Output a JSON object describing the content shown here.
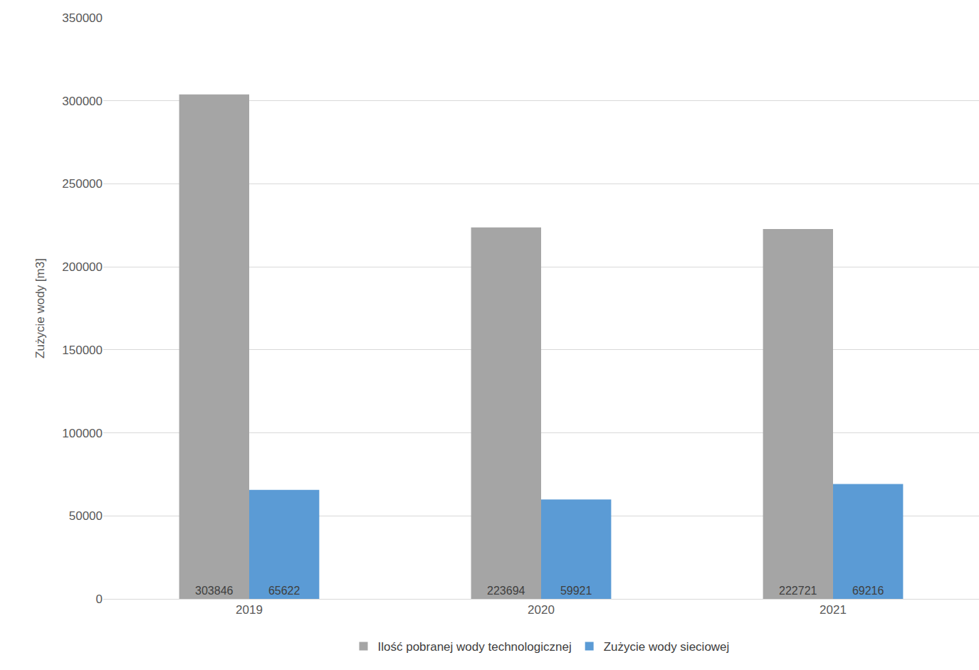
{
  "chart_data": {
    "type": "bar",
    "y_label": "Zużycie wody [m3]",
    "categories": [
      "2019",
      "2020",
      "2021"
    ],
    "series": [
      {
        "name": "Ilość pobranej wody technologicznej",
        "color": "#a5a5a5",
        "values": [
          303846,
          223694,
          222721
        ]
      },
      {
        "name": "Zużycie wody sieciowej",
        "color": "#5b9bd5",
        "values": [
          65622,
          59921,
          69216
        ]
      }
    ],
    "ylim": [
      0,
      350000
    ],
    "yticks": [
      0,
      50000,
      100000,
      150000,
      200000,
      250000,
      300000,
      350000
    ],
    "grid": true,
    "legend": "bottom",
    "data_labels": true
  }
}
